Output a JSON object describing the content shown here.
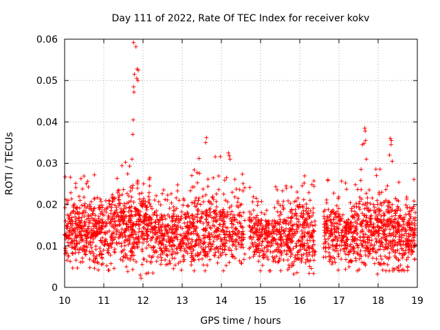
{
  "chart_data": {
    "type": "scatter",
    "title": "Day 111 of 2022, Rate Of TEC Index for receiver kokv",
    "xlabel": "GPS time / hours",
    "ylabel": "ROTI / TECUs",
    "xlim": [
      10,
      19
    ],
    "ylim": [
      0,
      0.06
    ],
    "grid": true,
    "marker": "plus",
    "color": "#ff0000",
    "x_ticks": [
      "10",
      "11",
      "12",
      "13",
      "14",
      "15",
      "16",
      "17",
      "18",
      "19"
    ],
    "y_ticks": [
      "0",
      "0.01",
      "0.02",
      "0.03",
      "0.04",
      "0.05",
      "0.06"
    ],
    "segments": [
      {
        "start": 10.0,
        "end": 11.2,
        "low": 0.004,
        "high": 0.028,
        "center": 0.014,
        "count": 420
      },
      {
        "start": 11.2,
        "end": 12.2,
        "low": 0.003,
        "high": 0.032,
        "center": 0.015,
        "count": 380
      },
      {
        "start": 12.2,
        "end": 13.2,
        "low": 0.003,
        "high": 0.026,
        "center": 0.013,
        "count": 320
      },
      {
        "start": 13.2,
        "end": 14.6,
        "low": 0.004,
        "high": 0.032,
        "center": 0.014,
        "count": 420
      },
      {
        "start": 14.7,
        "end": 15.7,
        "low": 0.004,
        "high": 0.025,
        "center": 0.012,
        "count": 300
      },
      {
        "start": 15.7,
        "end": 16.4,
        "low": 0.003,
        "high": 0.029,
        "center": 0.013,
        "count": 240
      },
      {
        "start": 16.6,
        "end": 17.5,
        "low": 0.004,
        "high": 0.026,
        "center": 0.013,
        "count": 300
      },
      {
        "start": 17.5,
        "end": 18.3,
        "low": 0.004,
        "high": 0.03,
        "center": 0.014,
        "count": 280
      },
      {
        "start": 18.3,
        "end": 18.95,
        "low": 0.004,
        "high": 0.028,
        "center": 0.013,
        "count": 240
      }
    ],
    "outliers": [
      {
        "x": 11.76,
        "y": 0.0592
      },
      {
        "x": 11.82,
        "y": 0.0582
      },
      {
        "x": 11.85,
        "y": 0.0528
      },
      {
        "x": 11.88,
        "y": 0.0525
      },
      {
        "x": 11.78,
        "y": 0.0515
      },
      {
        "x": 11.84,
        "y": 0.0505
      },
      {
        "x": 11.87,
        "y": 0.05
      },
      {
        "x": 11.76,
        "y": 0.0485
      },
      {
        "x": 11.77,
        "y": 0.0472
      },
      {
        "x": 11.75,
        "y": 0.0405
      },
      {
        "x": 11.74,
        "y": 0.037
      },
      {
        "x": 11.72,
        "y": 0.031
      },
      {
        "x": 13.62,
        "y": 0.0362
      },
      {
        "x": 13.6,
        "y": 0.035
      },
      {
        "x": 14.18,
        "y": 0.0325
      },
      {
        "x": 14.2,
        "y": 0.0318
      },
      {
        "x": 14.22,
        "y": 0.031
      },
      {
        "x": 17.66,
        "y": 0.0385
      },
      {
        "x": 17.67,
        "y": 0.0378
      },
      {
        "x": 17.68,
        "y": 0.0355
      },
      {
        "x": 17.64,
        "y": 0.0348
      },
      {
        "x": 17.6,
        "y": 0.0345
      },
      {
        "x": 17.7,
        "y": 0.031
      },
      {
        "x": 18.31,
        "y": 0.036
      },
      {
        "x": 18.34,
        "y": 0.0355
      },
      {
        "x": 18.33,
        "y": 0.0345
      },
      {
        "x": 18.29,
        "y": 0.032
      },
      {
        "x": 18.36,
        "y": 0.0305
      },
      {
        "x": 11.93,
        "y": 0.003
      },
      {
        "x": 11.95,
        "y": 0.0022
      },
      {
        "x": 17.98,
        "y": 0.0032
      },
      {
        "x": 15.85,
        "y": 0.0032
      }
    ]
  }
}
